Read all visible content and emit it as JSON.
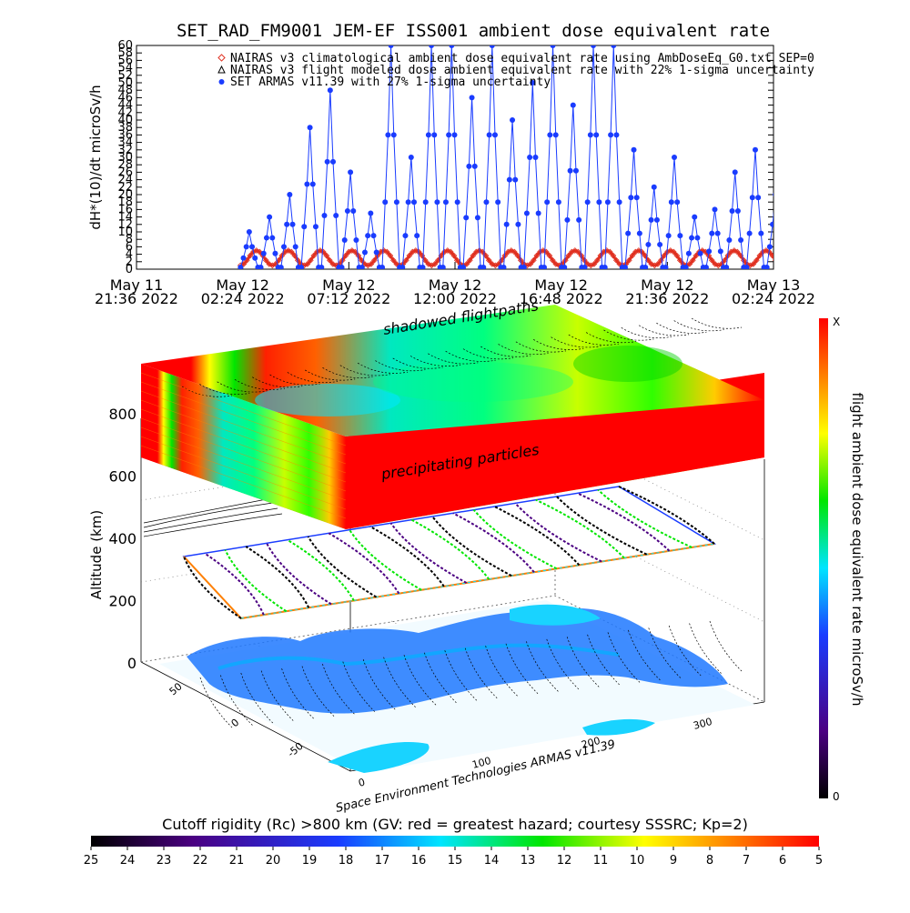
{
  "chart_data": [
    {
      "type": "line",
      "title": "SET_RAD_FM9001  JEM-EF ISS001 ambient dose equivalent rate",
      "ylabel": "dH*(10)/dt microSv/h",
      "ylim": [
        0,
        60
      ],
      "yticks": [
        0,
        2,
        4,
        6,
        8,
        10,
        12,
        14,
        16,
        18,
        20,
        22,
        24,
        26,
        28,
        30,
        32,
        34,
        36,
        38,
        40,
        42,
        44,
        46,
        48,
        50,
        52,
        54,
        56,
        58,
        60
      ],
      "xticks": [
        {
          "l1": "May 11",
          "l2": "21:36 2022"
        },
        {
          "l1": "May 12",
          "l2": "02:24 2022"
        },
        {
          "l1": "May 12",
          "l2": "07:12 2022"
        },
        {
          "l1": "May 12",
          "l2": "12:00 2022"
        },
        {
          "l1": "May 12",
          "l2": "16:48 2022"
        },
        {
          "l1": "May 12",
          "l2": "21:36 2022"
        },
        {
          "l1": "May 13",
          "l2": "02:24 2022"
        }
      ],
      "legend": [
        {
          "symbol": "diamond",
          "color": "#e03020",
          "text": "NAIRAS v3 climatological ambient dose equivalent rate using AmbDoseEq_G0.txt SEP=0"
        },
        {
          "symbol": "triangle",
          "color": "#000000",
          "text": "NAIRAS v3 flight modeled dose ambient equivalent rate with 22% 1-sigma uncertainty"
        },
        {
          "symbol": "dot",
          "color": "#1a3cff",
          "text": "SET ARMAS v11.39 with 27% 1-sigma uncertainty"
        }
      ],
      "series": [
        {
          "name": "NAIRAS v3 climatological ambient dose equivalent rate using AmbDoseEq_G0.txt SEP=0",
          "color": "#e03020",
          "x_range": [
            0.98,
            6.7
          ],
          "orbital_period": 0.3,
          "baseline": 1,
          "peak": 5
        },
        {
          "name": "SET ARMAS v11.39 with 27% 1-sigma uncertainty",
          "color": "#1a3cff",
          "x_range": [
            0.98,
            6.7
          ],
          "orbital_period": 0.3,
          "peaks": [
            10,
            14,
            20,
            38,
            48,
            26,
            15,
            60,
            30,
            60,
            60,
            46,
            60,
            40,
            50,
            60,
            44,
            60,
            60,
            32,
            22,
            30,
            14,
            16,
            26,
            32,
            20,
            22,
            14,
            10
          ]
        }
      ]
    },
    {
      "type": "other",
      "title": "3D altitude plot",
      "zlabel": "Altitude (km)",
      "zticks": [
        "0",
        "200",
        "400",
        "600",
        "800"
      ],
      "lat_ticks": [
        "50",
        "0",
        "-50"
      ],
      "lon_ticks": [
        "0",
        "100",
        "200",
        "300"
      ],
      "annotations": [
        "shadowed flightpaths",
        "precipitating particles"
      ],
      "credit": "Space Environment Technologies ARMAS v11.39"
    },
    {
      "type": "colorbar",
      "orientation": "vertical",
      "label": "flight ambient dose equivalent rate microSv/h",
      "top_label": "X",
      "bottom_label": "0"
    },
    {
      "type": "colorbar",
      "orientation": "horizontal",
      "label": "Cutoff rigidity (Rc) >800 km (GV: red = greatest hazard; courtesy SSSRC; Kp=2)",
      "ticks": [
        "25",
        "24",
        "23",
        "22",
        "21",
        "20",
        "19",
        "18",
        "17",
        "16",
        "15",
        "14",
        "13",
        "12",
        "11",
        "10",
        "9",
        "8",
        "7",
        "6",
        "5"
      ]
    }
  ],
  "colors": {
    "scale": [
      "#000000",
      "#4b0082",
      "#1a3cff",
      "#00e5ff",
      "#00e600",
      "#ffff00",
      "#ff8000",
      "#ff0000"
    ],
    "land": "#1e78ff",
    "ocean_tint": "#19d3ff"
  }
}
